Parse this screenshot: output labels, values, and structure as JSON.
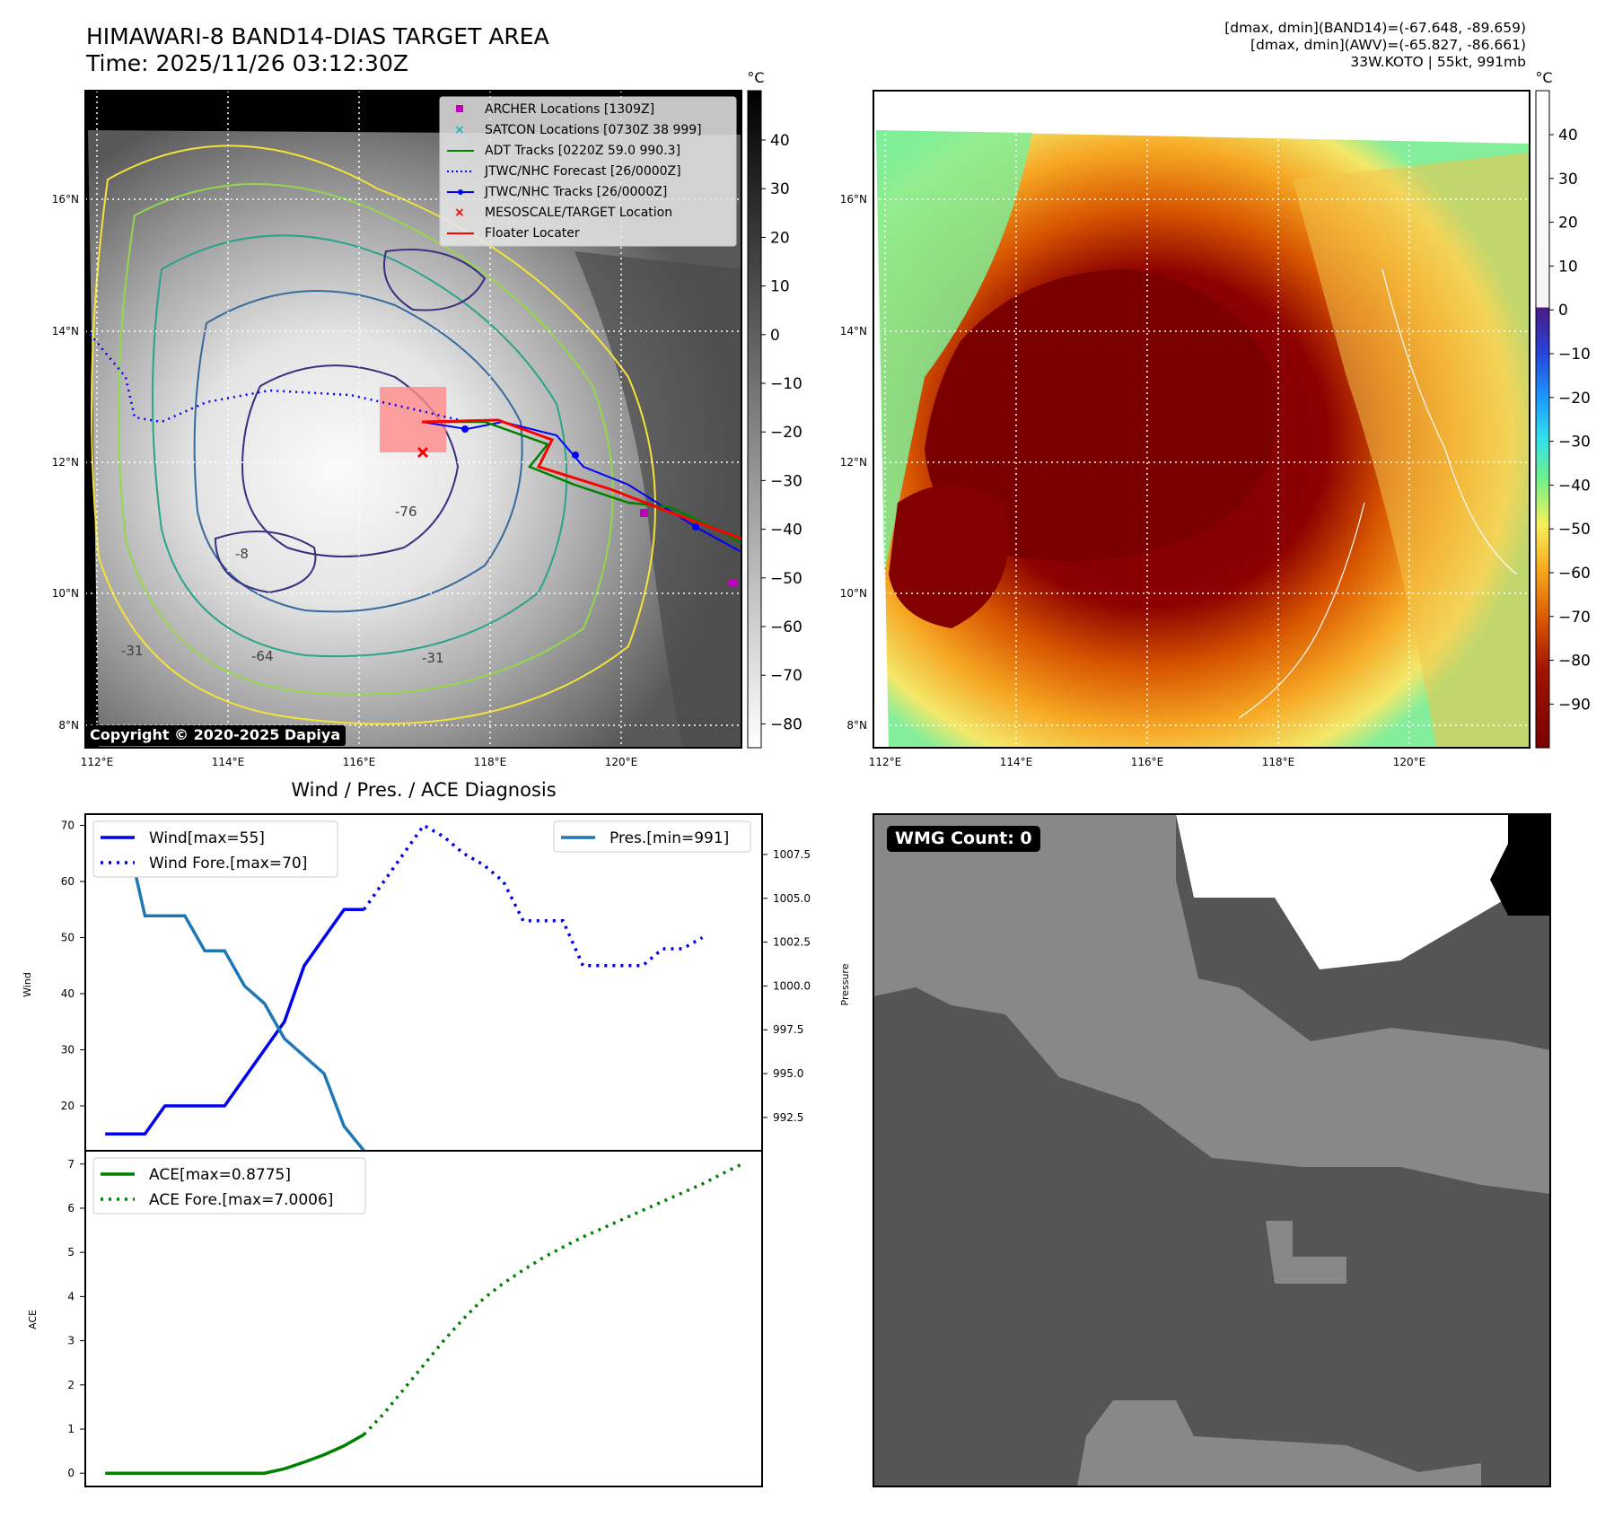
{
  "header": {
    "title": "HIMAWARI-8 BAND14-DIAS TARGET AREA",
    "time": "Time: 2025/11/26 03:12:30Z",
    "dmax_band14": "[dmax, dmin](BAND14)=(-67.648, -89.659)",
    "dmax_awv": "[dmax, dmin](AWV)=(-65.827, -86.661)",
    "storm_info": "33W.KOTO | 55kt, 991mb"
  },
  "map_panels": {
    "lon_ticks": [
      "112°E",
      "114°E",
      "116°E",
      "118°E",
      "120°E"
    ],
    "lat_ticks": [
      "8°N",
      "10°N",
      "12°N",
      "14°N",
      "16°N"
    ],
    "colorbar_unit": "°C",
    "left_colorbar_ticks": [
      "40",
      "30",
      "20",
      "10",
      "0",
      "−10",
      "−20",
      "−30",
      "−40",
      "−50",
      "−60",
      "−70",
      "−80"
    ],
    "right_colorbar_ticks": [
      "40",
      "30",
      "20",
      "10",
      "0",
      "−10",
      "−20",
      "−30",
      "−40",
      "−50",
      "−60",
      "−70",
      "−80",
      "−90"
    ],
    "copyright": "Copyright © 2020-2025 Dapiya",
    "contour_labels": [
      "-31",
      "-31",
      "-64",
      "-76",
      "-8"
    ],
    "legend": [
      {
        "label": "ARCHER Locations [1309Z]",
        "color": "#c000c0",
        "marker": "square"
      },
      {
        "label": "SATCON Locations [0730Z 38 999]",
        "color": "#20b8b8",
        "marker": "x"
      },
      {
        "label": "ADT Tracks [0220Z 59.0 990.3]",
        "color": "#008000",
        "marker": "line"
      },
      {
        "label": "JTWC/NHC Forecast [26/0000Z]",
        "color": "#0000ff",
        "marker": "dotted"
      },
      {
        "label": "JTWC/NHC Tracks [26/0000Z]",
        "color": "#0000ff",
        "marker": "line-dot"
      },
      {
        "label": "MESOSCALE/TARGET Location",
        "color": "#ff0000",
        "marker": "x"
      },
      {
        "label": "Floater Locater",
        "color": "#ff0000",
        "marker": "line"
      }
    ]
  },
  "diag": {
    "title": "Wind / Pres. / ACE Diagnosis",
    "wind_ylabel": "Wind",
    "pres_ylabel": "Pressure",
    "ace_ylabel": "ACE",
    "legend_wind": "Wind[max=55]",
    "legend_wind_fore": "Wind Fore.[max=70]",
    "legend_pres": "Pres.[min=991]",
    "legend_ace": "ACE[max=0.8775]",
    "legend_ace_fore": "ACE Fore.[max=7.0006]"
  },
  "wmg": {
    "badge": "WMG Count: 0"
  },
  "chart_data": [
    {
      "type": "line",
      "name": "wind-pressure",
      "xlim": [
        0,
        34
      ],
      "wind_ylim": [
        12,
        72
      ],
      "wind_yticks": [
        "20",
        "30",
        "40",
        "50",
        "60",
        "70"
      ],
      "pres_ylim": [
        990.6,
        1009.8
      ],
      "pres_yticks": [
        "992.5",
        "995.0",
        "997.5",
        "1000.0",
        "1002.5",
        "1005.0",
        "1007.5"
      ],
      "series": [
        {
          "name": "Wind",
          "style": "solid",
          "color": "#0000ee",
          "axis": "wind",
          "x": [
            1,
            3,
            4,
            5,
            6,
            7,
            8,
            9,
            10,
            11,
            12,
            13,
            14
          ],
          "values": [
            15,
            15,
            20,
            20,
            20,
            20,
            25,
            30,
            35,
            45,
            50,
            55,
            55
          ]
        },
        {
          "name": "Wind Fore.",
          "style": "dotted",
          "color": "#0000ee",
          "axis": "wind",
          "x": [
            14,
            15,
            16,
            17,
            18,
            19,
            20,
            21,
            22,
            23,
            24,
            25,
            26,
            27,
            28,
            29,
            30,
            31
          ],
          "values": [
            55,
            60,
            65,
            70,
            68,
            65,
            63,
            60,
            53,
            53,
            53,
            45,
            45,
            45,
            45,
            48,
            48,
            50
          ]
        },
        {
          "name": "Pres.",
          "style": "solid",
          "color": "#1f77b4",
          "axis": "pres",
          "x": [
            1,
            2,
            3,
            4,
            5,
            6,
            7,
            8,
            9,
            10,
            11,
            12,
            13,
            14
          ],
          "values": [
            1009.0,
            1009.0,
            1004.0,
            1004.0,
            1004.0,
            1002.0,
            1002.0,
            1000.0,
            999.0,
            997.0,
            996.0,
            995.0,
            992.0,
            990.6
          ]
        }
      ]
    },
    {
      "type": "line",
      "name": "ace",
      "xlim": [
        0,
        34
      ],
      "ylim": [
        -0.3,
        7.3
      ],
      "yticks": [
        "0",
        "1",
        "2",
        "3",
        "4",
        "5",
        "6",
        "7"
      ],
      "series": [
        {
          "name": "ACE",
          "style": "solid",
          "color": "#008000",
          "x": [
            1,
            3,
            5,
            7,
            9,
            10,
            11,
            12,
            13,
            14
          ],
          "values": [
            0,
            0,
            0,
            0,
            0,
            0.1,
            0.25,
            0.42,
            0.62,
            0.8775
          ]
        },
        {
          "name": "ACE Fore.",
          "style": "dotted",
          "color": "#008000",
          "x": [
            14,
            15,
            16,
            17,
            18,
            19,
            20,
            21,
            22,
            23,
            24,
            25,
            26,
            27,
            28,
            29,
            30,
            31,
            32,
            33
          ],
          "values": [
            0.8775,
            1.35,
            1.9,
            2.45,
            3.0,
            3.5,
            3.95,
            4.3,
            4.6,
            4.88,
            5.12,
            5.35,
            5.55,
            5.75,
            5.95,
            6.15,
            6.35,
            6.55,
            6.78,
            7.0006
          ]
        }
      ]
    }
  ]
}
